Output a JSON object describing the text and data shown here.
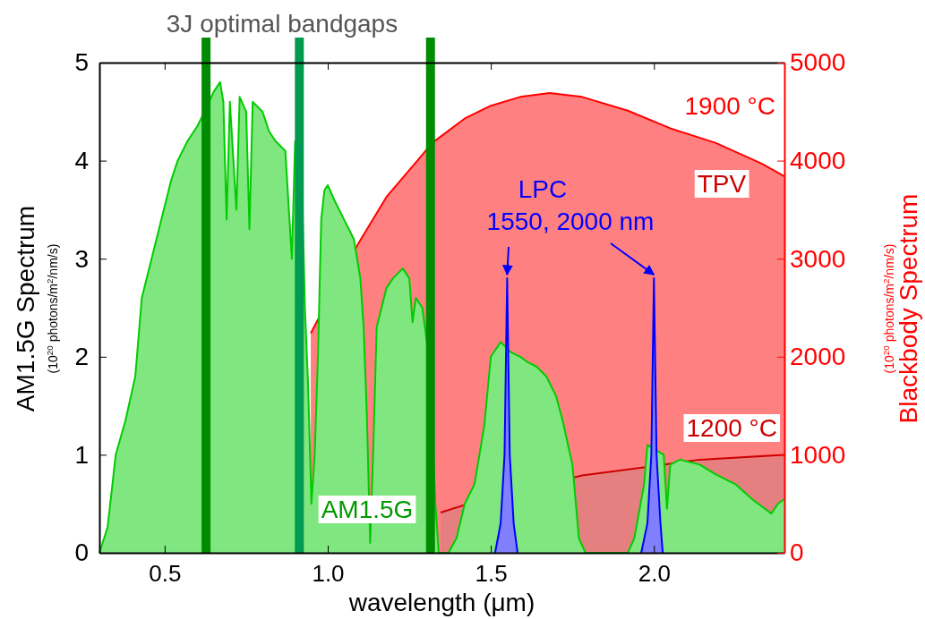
{
  "chart_data": {
    "type": "area",
    "xlabel": "wavelength (μm)",
    "ylabel": "AM1.5G Spectrum\n(10$^{20}$ photons/m$^{2}$/nm/s)",
    "y2label": "Blackbody Spectrum\n(10$^{20}$ photons/m$^{2}$/nm/s)",
    "xlim": [
      0.3,
      2.4
    ],
    "xticks": [
      {
        "value": 0.5,
        "label": "0.5"
      },
      {
        "value": 1.0,
        "label": "1.0"
      },
      {
        "value": 1.5,
        "label": "1.5"
      },
      {
        "value": 2.0,
        "label": "2.0"
      }
    ],
    "ylim": [
      0,
      5
    ],
    "yticks": [
      0,
      1,
      2,
      3,
      4,
      5
    ],
    "y2lim": [
      0,
      5000
    ],
    "y2ticks": [
      0,
      1000,
      2000,
      3000,
      4000,
      5000
    ],
    "legend": false,
    "grid": false,
    "series": [
      {
        "name": "1900 °C",
        "axis": "y2",
        "color": "#ff0000",
        "x": [
          0.948,
          1.093,
          1.18,
          1.28,
          1.32,
          1.42,
          1.5,
          1.59,
          1.68,
          1.78,
          1.92,
          2.05,
          2.19,
          2.33,
          2.4
        ],
        "values": [
          2240,
          3150,
          3630,
          4020,
          4180,
          4430,
          4560,
          4650,
          4690,
          4650,
          4510,
          4330,
          4180,
          3970,
          3840
        ]
      },
      {
        "name": "1200 °C",
        "axis": "y2",
        "color": "#cc0000",
        "x": [
          1.346,
          1.44,
          1.78,
          1.99,
          2.14,
          2.4
        ],
        "values": [
          410,
          510,
          790,
          880,
          950,
          1000
        ]
      },
      {
        "name": "AM1.5G",
        "color": "#00cc00",
        "x": [
          0.3,
          0.325,
          0.34,
          0.35,
          0.38,
          0.41,
          0.43,
          0.46,
          0.49,
          0.52,
          0.54,
          0.57,
          0.6,
          0.63,
          0.65,
          0.67,
          0.68,
          0.69,
          0.7,
          0.72,
          0.73,
          0.75,
          0.76,
          0.77,
          0.8,
          0.82,
          0.84,
          0.87,
          0.89,
          0.9,
          0.92,
          0.93,
          0.94,
          0.95,
          0.96,
          0.97,
          0.98,
          0.99,
          1.0,
          1.02,
          1.05,
          1.08,
          1.1,
          1.11,
          1.12,
          1.13,
          1.14,
          1.15,
          1.18,
          1.2,
          1.23,
          1.25,
          1.26,
          1.27,
          1.29,
          1.31,
          1.33,
          1.34,
          1.37,
          1.395,
          1.42,
          1.45,
          1.48,
          1.5,
          1.52,
          1.53,
          1.56,
          1.59,
          1.61,
          1.64,
          1.67,
          1.7,
          1.72,
          1.75,
          1.77,
          1.79,
          1.92,
          1.94,
          1.97,
          1.98,
          2.03,
          2.04,
          2.05,
          2.08,
          2.14,
          2.19,
          2.25,
          2.3,
          2.34,
          2.36,
          2.38,
          2.4
        ],
        "values": [
          0,
          0.26,
          0.7,
          1.0,
          1.35,
          1.8,
          2.6,
          3.0,
          3.4,
          3.8,
          4.0,
          4.2,
          4.35,
          4.55,
          4.7,
          4.8,
          4.6,
          3.4,
          4.6,
          3.5,
          4.65,
          4.5,
          3.3,
          4.6,
          4.5,
          4.3,
          4.2,
          4.1,
          3.0,
          4.2,
          3.9,
          2.5,
          1.7,
          0.5,
          1.0,
          2.0,
          3.4,
          3.7,
          3.75,
          3.6,
          3.4,
          3.2,
          2.8,
          2.3,
          1.4,
          0.1,
          1.1,
          2.3,
          2.7,
          2.8,
          2.9,
          2.8,
          2.35,
          2.6,
          2.5,
          2.0,
          0.5,
          0,
          0,
          0.15,
          0.5,
          0.7,
          1.3,
          2.0,
          2.1,
          2.15,
          2.05,
          2.0,
          1.95,
          1.9,
          1.8,
          1.6,
          1.35,
          0.9,
          0.15,
          0,
          0,
          0.15,
          0.7,
          1.1,
          1.0,
          0.45,
          0.9,
          0.95,
          0.9,
          0.8,
          0.7,
          0.55,
          0.45,
          0.4,
          0.5,
          0.55
        ]
      },
      {
        "name": "LPC",
        "color": "#0000ff",
        "x": [
          1.513,
          1.53,
          1.542,
          1.55,
          1.558,
          1.57,
          1.582,
          1.8,
          1.961,
          1.98,
          1.992,
          2.0,
          2.008,
          2.02,
          2.027
        ],
        "values": [
          0,
          0.3,
          1.0,
          2.8,
          1.0,
          0.3,
          0,
          null,
          0,
          0.3,
          1.0,
          2.8,
          1.0,
          0.3,
          0
        ]
      }
    ],
    "ref_lines": [
      {
        "axis": "x",
        "value": 0.627,
        "color": "#008c00"
      },
      {
        "axis": "x",
        "value": 0.913,
        "color": "#009a50"
      },
      {
        "axis": "x",
        "value": 1.315,
        "color": "#008c00"
      }
    ],
    "annotations": [
      "3J optimal bandgaps",
      "TPV",
      {
        "text": "1550, 2000 nm",
        "x": 1.55,
        "y": 2.8
      }
    ]
  }
}
